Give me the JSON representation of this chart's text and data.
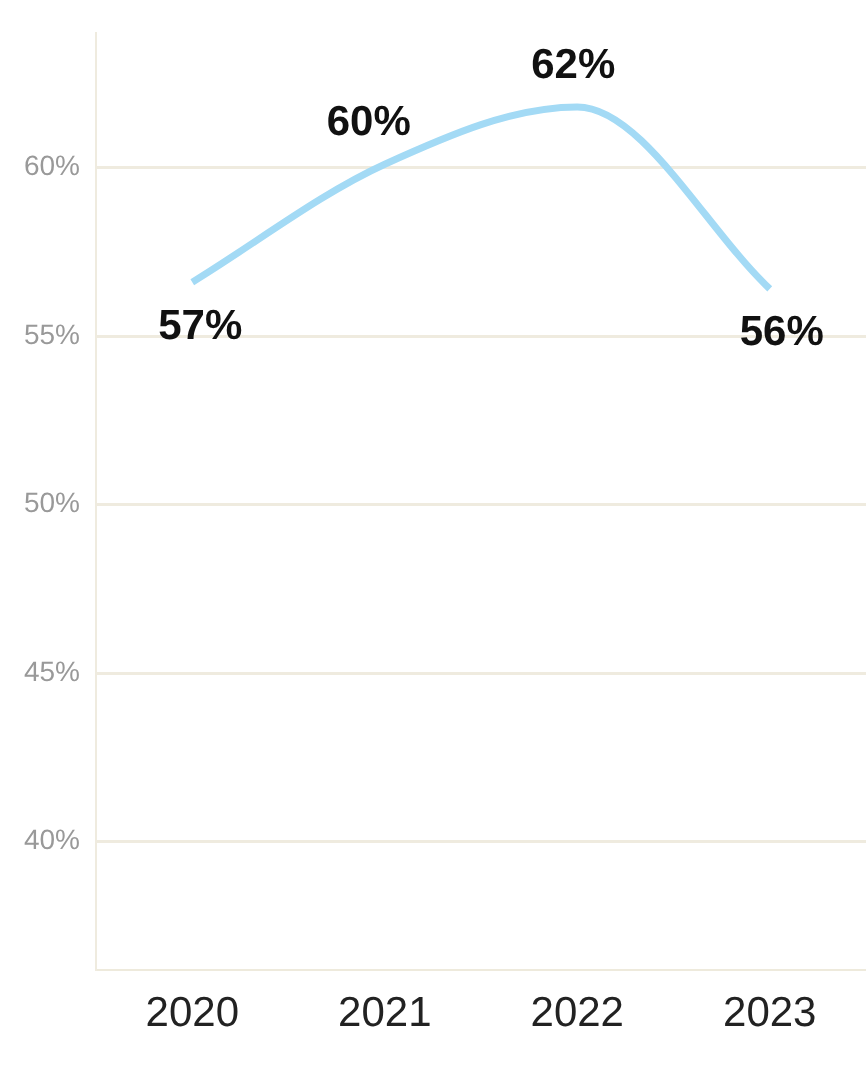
{
  "chart_data": {
    "type": "line",
    "categories": [
      "2020",
      "2021",
      "2022",
      "2023"
    ],
    "series": [
      {
        "color": "#a3daf5",
        "values": [
          56.6,
          60.1,
          61.8,
          56.4
        ],
        "value_labels": [
          "57%",
          "60%",
          "62%",
          "56%"
        ]
      }
    ],
    "ylim": [
      36.2,
      64
    ],
    "yticks": [
      {
        "value": 40,
        "label": "40%"
      },
      {
        "value": 45,
        "label": "45%"
      },
      {
        "value": 50,
        "label": "50%"
      },
      {
        "value": 55,
        "label": "55%"
      },
      {
        "value": 60,
        "label": "60%"
      }
    ],
    "grid": "y",
    "legend": false,
    "marker": "none",
    "line_style": "solid"
  }
}
